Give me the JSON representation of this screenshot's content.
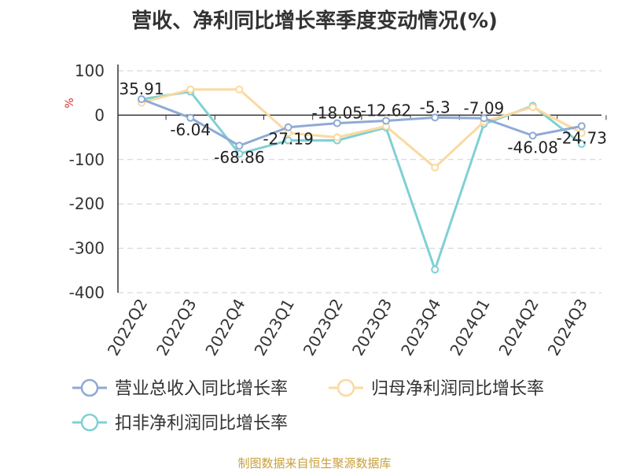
{
  "title": "营收、净利同比增长率季度变动情况(%)",
  "source": "制图数据来自恒生聚源数据库",
  "chart_data": {
    "type": "line",
    "title": "营收、净利同比增长率季度变动情况(%)",
    "ylabel": "%",
    "categories": [
      "2022Q2",
      "2022Q3",
      "2022Q4",
      "2023Q1",
      "2023Q2",
      "2023Q3",
      "2023Q4",
      "2024Q1",
      "2024Q2",
      "2024Q3"
    ],
    "ylim": [
      -400,
      100
    ],
    "yticks": [
      100,
      0,
      -100,
      -200,
      -300,
      -400
    ],
    "grid": true,
    "legend_position": "bottom",
    "series": [
      {
        "name": "营业总收入同比增长率",
        "color": "#8faad6",
        "values": [
          35.91,
          -6.04,
          -68.86,
          -27.19,
          -18.05,
          -12.62,
          -5.3,
          -7.09,
          -46.08,
          -24.73
        ],
        "labels": [
          "35.91",
          "-6.04",
          "-68.86",
          "-27.19",
          "-18.05",
          "-12.62",
          "-5.3",
          "-7.09",
          "-46.08",
          "-24.73"
        ]
      },
      {
        "name": "归母净利润同比增长率",
        "color": "#fbd9a0",
        "values": [
          28,
          58,
          58,
          -40,
          -50,
          -25,
          -118,
          -15,
          18,
          -40
        ]
      },
      {
        "name": "扣非净利润同比增长率",
        "color": "#7fd0d4",
        "values": [
          36,
          53,
          -87,
          -57,
          -57,
          -28,
          -348,
          -20,
          21,
          -65
        ]
      }
    ]
  }
}
